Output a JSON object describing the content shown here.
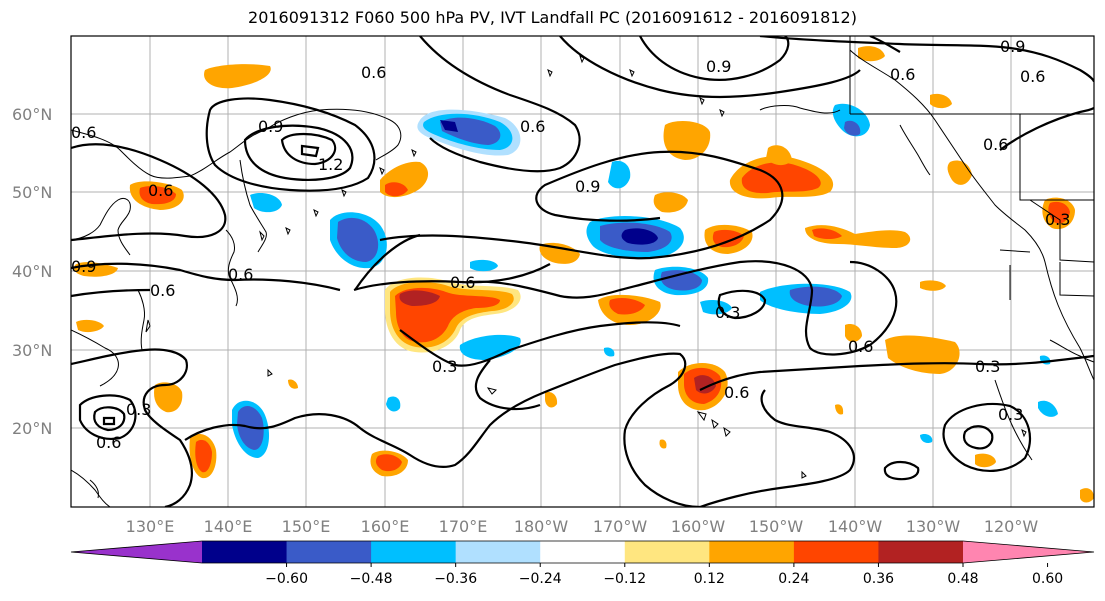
{
  "title": "2016091312 F060 500 hPa PV, IVT Landfall PC (2016091612 - 2016091812)",
  "lat_labels": [
    "60°N",
    "50°N",
    "40°N",
    "30°N",
    "20°N"
  ],
  "lon_labels": [
    "130°E",
    "140°E",
    "150°E",
    "160°E",
    "170°E",
    "180°W",
    "170°W",
    "160°W",
    "150°W",
    "140°W",
    "130°W",
    "120°W"
  ],
  "contour_labels": [
    "0.6",
    "0.9",
    "0.6",
    "0.9",
    "0.6",
    "0.9",
    "0.6",
    "1.2",
    "0.9",
    "0.6",
    "0.6",
    "0.6",
    "0.6",
    "0.6",
    "0.3",
    "0.3",
    "0.6",
    "0.6",
    "0.3",
    "0.3",
    "0.6",
    "0.3",
    "0.6",
    "0.9",
    "0.3"
  ],
  "colorbar": {
    "tick_labels": [
      "−0.60",
      "−0.48",
      "−0.36",
      "−0.24",
      "−0.12",
      "0.12",
      "0.24",
      "0.36",
      "0.48",
      "0.60"
    ],
    "colors": [
      "#9932cc",
      "#00008b",
      "#3a5bc8",
      "#00bfff",
      "#b0e0ff",
      "#ffffff",
      "#ffe680",
      "#ffa500",
      "#ff4500",
      "#b22222",
      "#ff85b0"
    ]
  },
  "colors": {
    "positive_light": "#ffe680",
    "positive_mid": "#ffa500",
    "positive_strong": "#ff4500",
    "positive_max": "#b22222",
    "negative_light": "#b0e0ff",
    "negative_mid": "#00bfff",
    "negative_strong": "#3a5bc8",
    "negative_max": "#00008b",
    "grid": "#b0b0b0"
  }
}
